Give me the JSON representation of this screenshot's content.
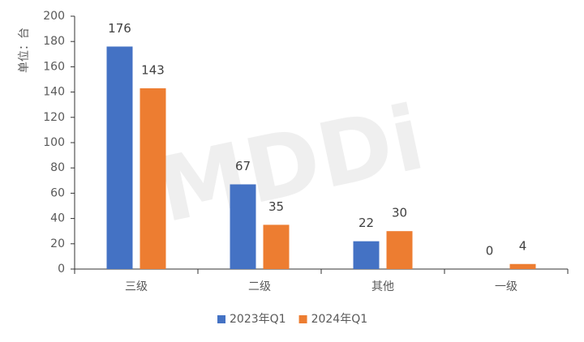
{
  "chart_data": {
    "type": "bar",
    "y_label": "单位：台",
    "watermark": "MDDi",
    "categories": [
      "三级",
      "二级",
      "其他",
      "一级"
    ],
    "series": [
      {
        "name": "2023年Q1",
        "color": "#4472c4",
        "values": [
          176,
          67,
          22,
          0
        ]
      },
      {
        "name": "2024年Q1",
        "color": "#ed7d31",
        "values": [
          143,
          35,
          30,
          4
        ]
      }
    ],
    "ylim": [
      0,
      200
    ],
    "yticks": [
      0,
      20,
      40,
      60,
      80,
      100,
      120,
      140,
      160,
      180,
      200
    ],
    "grid": false,
    "legend": "bottom"
  }
}
